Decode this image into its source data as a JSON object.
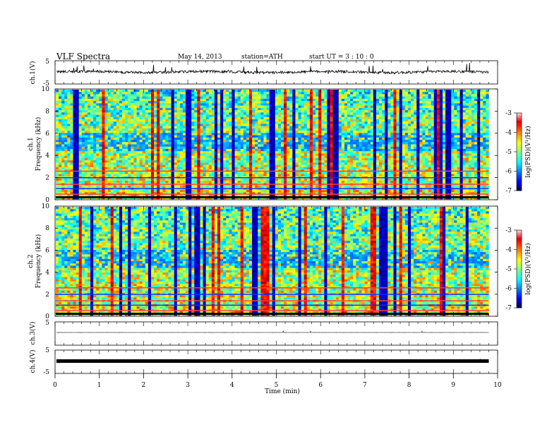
{
  "header": {
    "title": "VLF  Spectra",
    "date": "May 14, 2013",
    "station": "station=ATH",
    "start": "start  UT  =   3  : 10 : 0"
  },
  "chart_data": [
    {
      "type": "line",
      "name": "ch1-waveform",
      "ylabel": "ch.1(V)",
      "ylim": [
        -5,
        5
      ],
      "yticks": [
        "5",
        "-5"
      ],
      "baseline": 0,
      "noise": "broadband"
    },
    {
      "type": "heatmap",
      "name": "ch1-spectrogram",
      "ylabel_top": "ch.1",
      "ylabel": "Frequency  (kHz)",
      "ylim": [
        0,
        10
      ],
      "yticks": [
        "0",
        "2",
        "4",
        "6",
        "8",
        "10"
      ],
      "colorbar": {
        "label": "log(PSD)(V²/Hz)",
        "range": [
          -7,
          -3
        ],
        "ticks": [
          "-3",
          "-4",
          "-5",
          "-6",
          "-7"
        ]
      }
    },
    {
      "type": "heatmap",
      "name": "ch2-spectrogram",
      "ylabel_top": "ch.2",
      "ylabel": "Frequency  (kHz)",
      "ylim": [
        0,
        10
      ],
      "yticks": [
        "0",
        "2",
        "4",
        "6",
        "8",
        "10"
      ],
      "colorbar": {
        "label": "log(PSD)(V²/Hz)",
        "range": [
          -7,
          -3
        ],
        "ticks": [
          "-3",
          "-4",
          "-5",
          "-6",
          "-7"
        ]
      }
    },
    {
      "type": "line",
      "name": "ch3-waveform",
      "ylabel": "ch.3(V)",
      "ylim": [
        -5,
        5
      ],
      "yticks": [
        "5"
      ],
      "baseline": 0,
      "noise": "flat"
    },
    {
      "type": "line",
      "name": "ch4-waveform",
      "ylabel": "ch.4(V)",
      "ylim": [
        -5,
        5
      ],
      "yticks": [
        "5",
        "-5"
      ],
      "baseline": 0,
      "noise": "thick"
    }
  ],
  "x_axis": {
    "label": "Time  (min)",
    "range": [
      0,
      10
    ],
    "data_end": 9.8,
    "ticks": [
      "0",
      "1",
      "2",
      "3",
      "4",
      "5",
      "6",
      "7",
      "8",
      "9",
      "10"
    ]
  }
}
